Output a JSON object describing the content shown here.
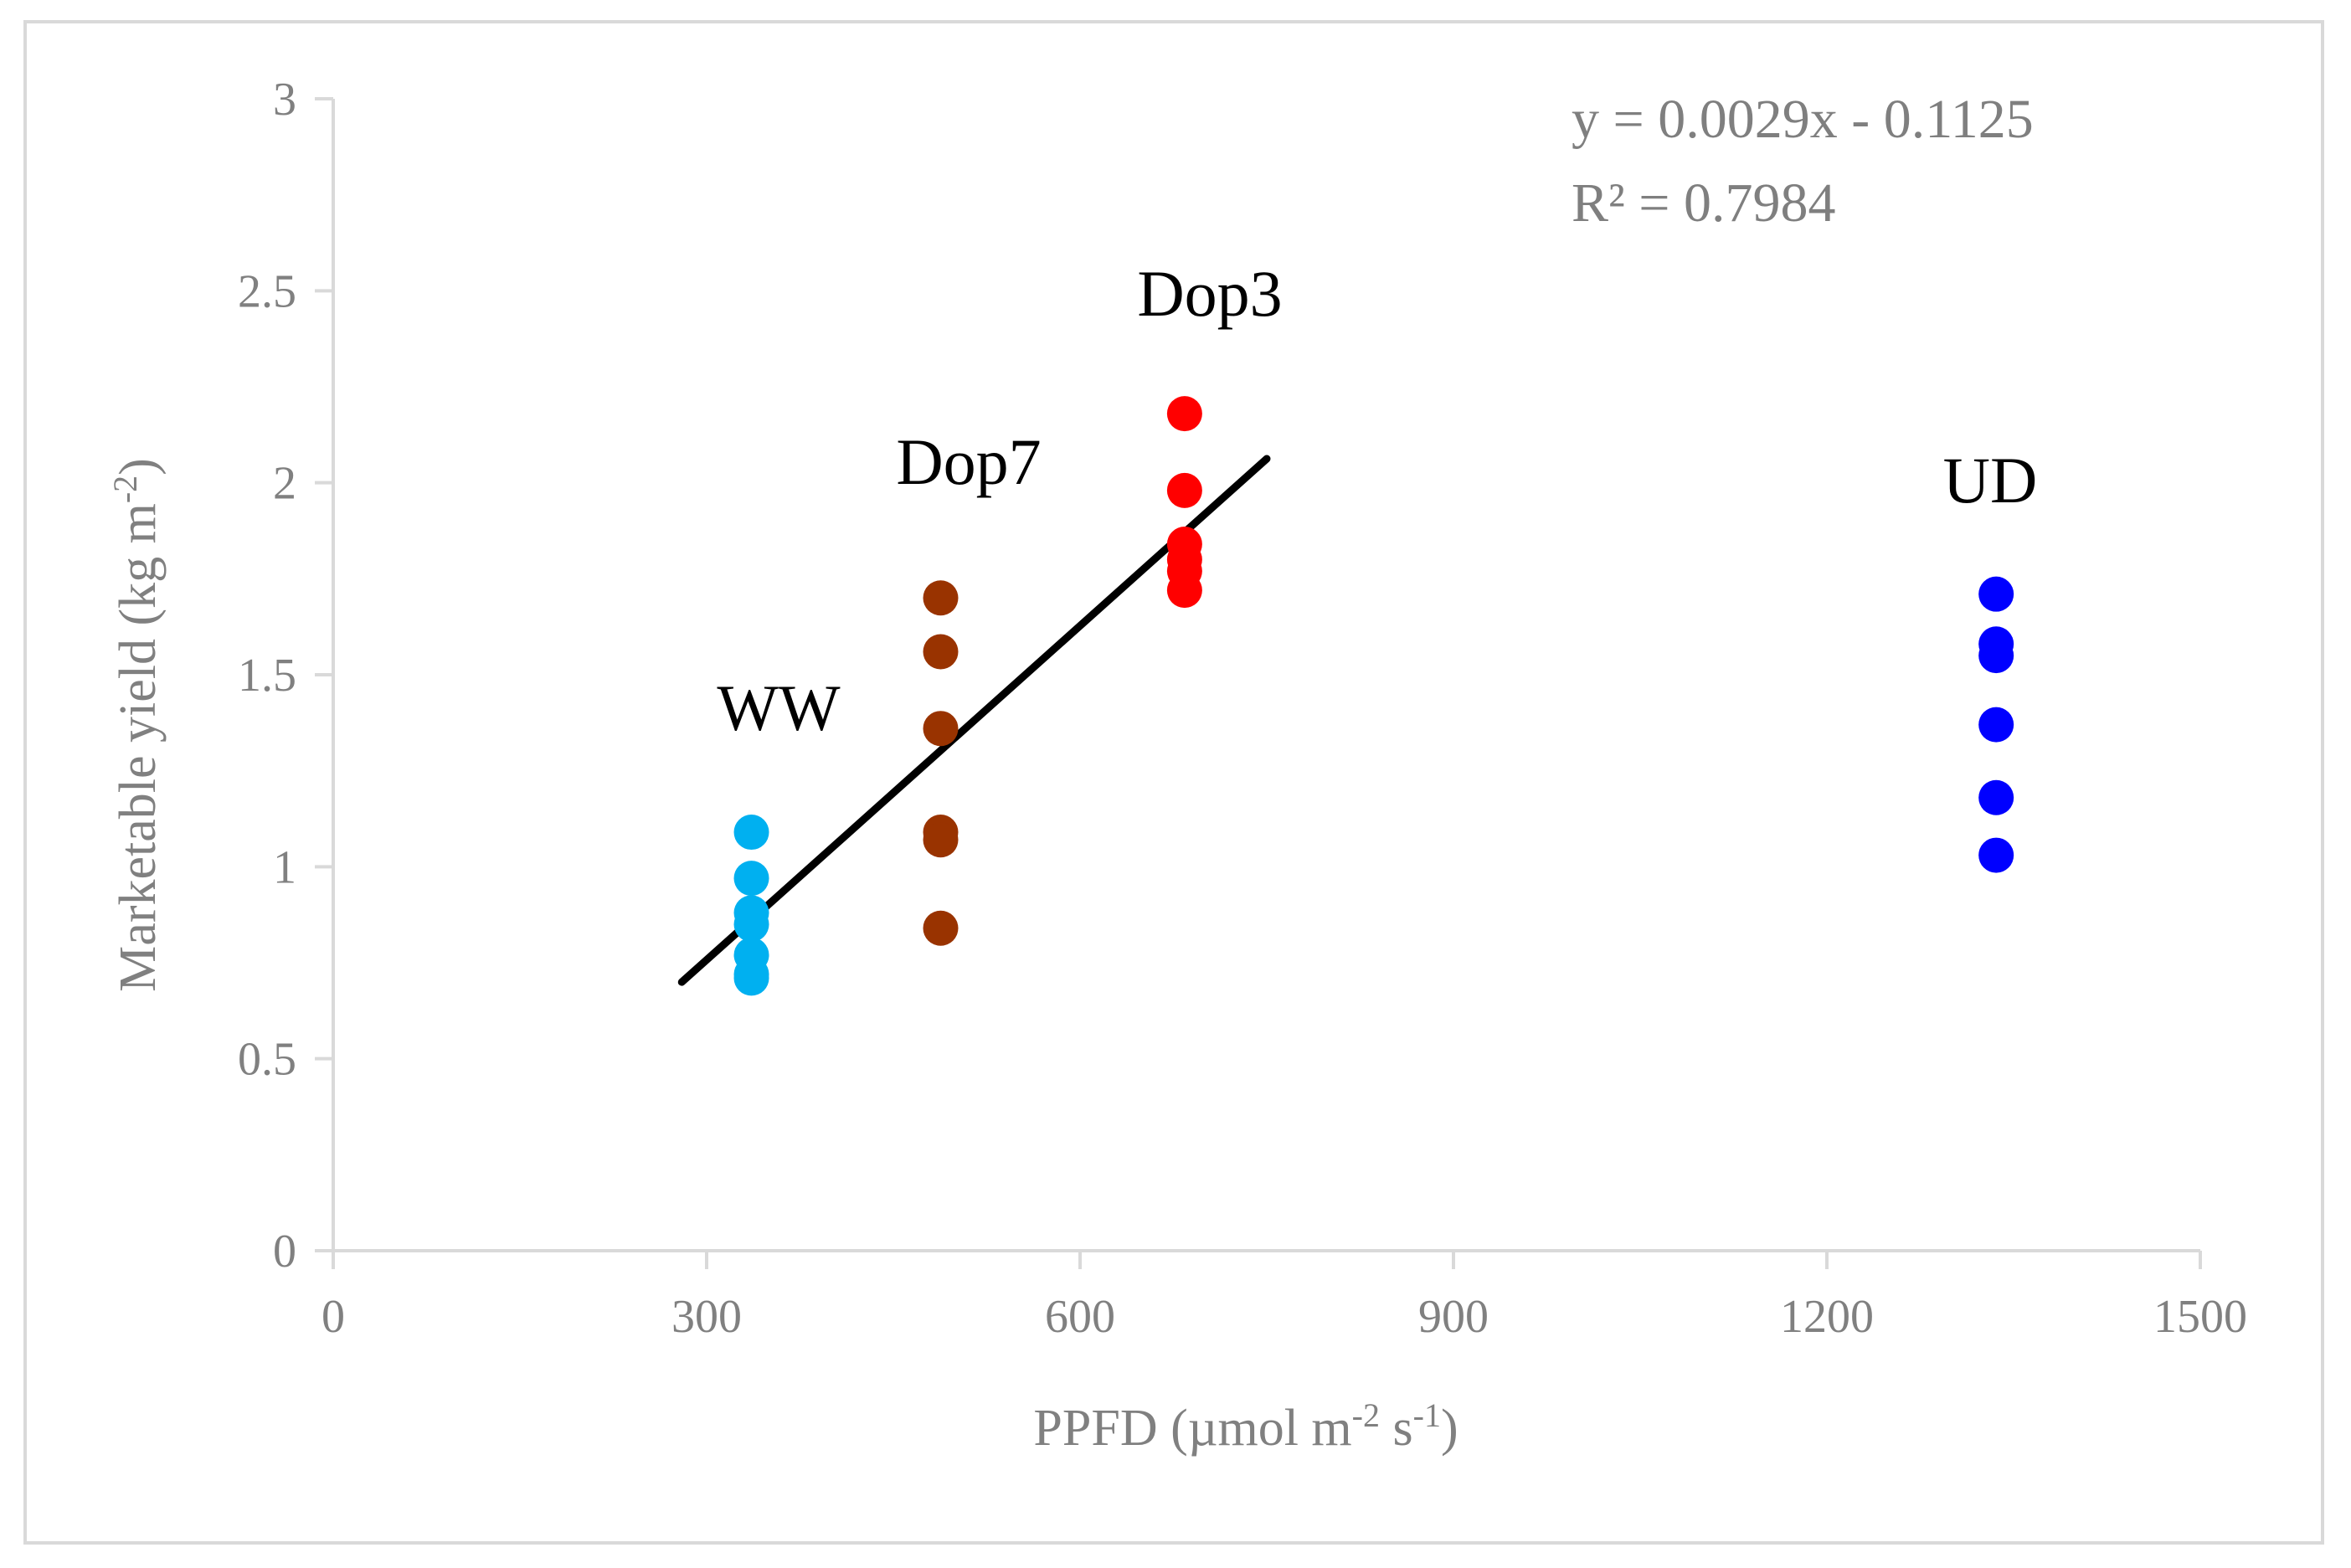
{
  "chart_data": {
    "type": "scatter",
    "title": "",
    "xlabel": {
      "main": "PPFD (µmol m",
      "sup1": "-2",
      "mid": " s",
      "sup2": "-1",
      "end": ")"
    },
    "ylabel": {
      "main": "Marketable yield (kg m",
      "sup": "-2",
      "end": ")"
    },
    "xlim": [
      0,
      1500
    ],
    "ylim": [
      0,
      3
    ],
    "xticks": [
      0,
      300,
      600,
      900,
      1200,
      1500
    ],
    "yticks": [
      0,
      0.5,
      1,
      1.5,
      2,
      2.5,
      3
    ],
    "xtick_labels": [
      "0",
      "300",
      "600",
      "900",
      "1200",
      "1500"
    ],
    "ytick_labels": [
      "0",
      "0.5",
      "1",
      "1.5",
      "2",
      "2.5",
      "3"
    ],
    "grid": false,
    "series": [
      {
        "name": "WW",
        "color": "#00b0f0",
        "x": [
          336,
          336,
          336,
          336,
          336,
          336,
          336
        ],
        "y": [
          1.09,
          0.97,
          0.88,
          0.85,
          0.77,
          0.72,
          0.71
        ]
      },
      {
        "name": "Dop7",
        "color": "#993300",
        "x": [
          488,
          488,
          488,
          488,
          488,
          488
        ],
        "y": [
          1.7,
          1.56,
          1.36,
          1.09,
          1.07,
          0.84
        ]
      },
      {
        "name": "Dop3",
        "color": "#ff0000",
        "x": [
          684,
          684,
          684,
          684,
          684,
          684
        ],
        "y": [
          2.18,
          1.98,
          1.84,
          1.8,
          1.77,
          1.72
        ]
      },
      {
        "name": "UD",
        "color": "#0000ff",
        "x": [
          1336,
          1336,
          1336,
          1336,
          1336,
          1336
        ],
        "y": [
          1.71,
          1.58,
          1.55,
          1.37,
          1.18,
          1.03
        ]
      }
    ],
    "trendline": {
      "slope": 0.0029,
      "intercept": -0.1125,
      "x_range": [
        280,
        750
      ],
      "color": "#000000"
    },
    "annotations": {
      "equation": "y = 0.0029x - 0.1125",
      "r2": "R² = 0.7984"
    },
    "group_labels": [
      "WW",
      "Dop7",
      "Dop3",
      "UD"
    ]
  }
}
